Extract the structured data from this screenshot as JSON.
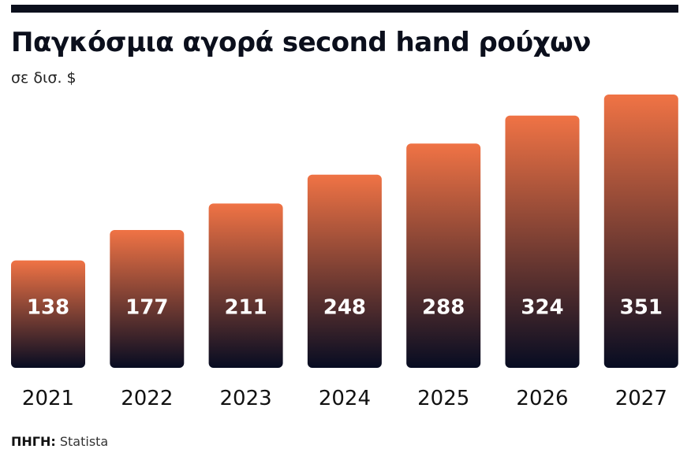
{
  "header": {
    "title": "Παγκόσμια αγορά second hand ρούχων",
    "subtitle": "σε δισ. $"
  },
  "footer": {
    "source_key": "ΠΗΓΗ:",
    "source_value": "Statista"
  },
  "colors": {
    "bar_top": "#f07345",
    "bar_bottom": "#070c22",
    "rule": "#0b0f1c"
  },
  "chart_data": {
    "type": "bar",
    "title": "Παγκόσμια αγορά second hand ρούχων",
    "subtitle": "σε δισ. $",
    "categories": [
      "2021",
      "2022",
      "2023",
      "2024",
      "2025",
      "2026",
      "2027"
    ],
    "values": [
      138,
      177,
      211,
      248,
      288,
      324,
      351
    ],
    "data_labels": [
      "138",
      "177",
      "211",
      "248",
      "288",
      "324",
      "351"
    ],
    "ylim": [
      0,
      351
    ],
    "grid": false,
    "legend": "none"
  }
}
